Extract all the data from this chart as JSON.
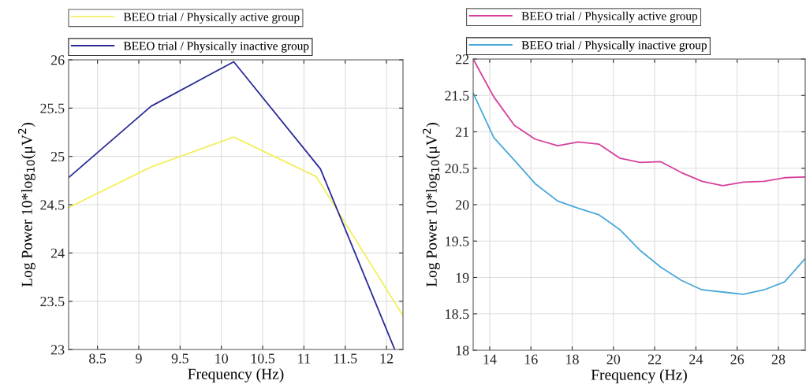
{
  "chart_data": [
    {
      "type": "line",
      "xlabel": "Frequency (Hz)",
      "ylabel": "Log Power 10*log$_{10}$(μV$^{2}$)",
      "xlim": [
        8.15,
        12.2
      ],
      "xticks": [
        8.5,
        9,
        9.5,
        10,
        10.5,
        11,
        11.5,
        12
      ],
      "ylim": [
        23,
        26
      ],
      "yticks": [
        23,
        23.5,
        24,
        24.5,
        25,
        25.5,
        26
      ],
      "grid": true,
      "legend": "top",
      "series": [
        {
          "name": "BEEO trial / Physically active group",
          "color": "#f2ef60",
          "x": [
            8.15,
            9.15,
            10.15,
            11.15,
            12.2
          ],
          "values": [
            24.47,
            24.89,
            25.2,
            24.79,
            23.35
          ]
        },
        {
          "name": "BEEO trial / Physically inactive group",
          "color": "#2a2a98",
          "x": [
            8.15,
            9.15,
            10.15,
            11.2,
            12.1
          ],
          "values": [
            24.78,
            25.52,
            25.98,
            24.87,
            23
          ]
        }
      ]
    },
    {
      "type": "line",
      "xlabel": "Frequency (Hz)",
      "ylabel": "Log Power 10*log$_{10}$(μV$^{2}$)",
      "xlim": [
        13.2,
        29.3
      ],
      "xticks": [
        14,
        16,
        18,
        20,
        22,
        24,
        26,
        28
      ],
      "ylim": [
        18,
        22
      ],
      "yticks": [
        18,
        18.5,
        19,
        19.5,
        20,
        20.5,
        21,
        21.5,
        22
      ],
      "grid": true,
      "legend": "top",
      "series": [
        {
          "name": "BEEO trial / Physically active group",
          "color": "#d6409b",
          "x": [
            13.2,
            14.2,
            15.2,
            16.2,
            17.3,
            18.3,
            19.3,
            20.3,
            21.3,
            22.3,
            23.3,
            24.3,
            25.3,
            26.3,
            27.3,
            28.3,
            29.3
          ],
          "values": [
            22,
            21.48,
            21.09,
            20.9,
            20.81,
            20.86,
            20.83,
            20.64,
            20.58,
            20.59,
            20.44,
            20.32,
            20.26,
            20.31,
            20.32,
            20.37,
            20.38
          ]
        },
        {
          "name": "BEEO trial / Physically inactive group",
          "color": "#4aa8d8",
          "x": [
            13.2,
            14.2,
            15.2,
            16.2,
            17.3,
            18.3,
            19.3,
            20.3,
            21.3,
            22.3,
            23.3,
            24.3,
            25.3,
            26.3,
            27.3,
            28.3,
            29.3
          ],
          "values": [
            21.53,
            20.92,
            20.61,
            20.29,
            20.05,
            19.95,
            19.86,
            19.66,
            19.37,
            19.14,
            18.96,
            18.83,
            18.8,
            18.77,
            18.83,
            18.94,
            19.26
          ]
        }
      ]
    }
  ]
}
